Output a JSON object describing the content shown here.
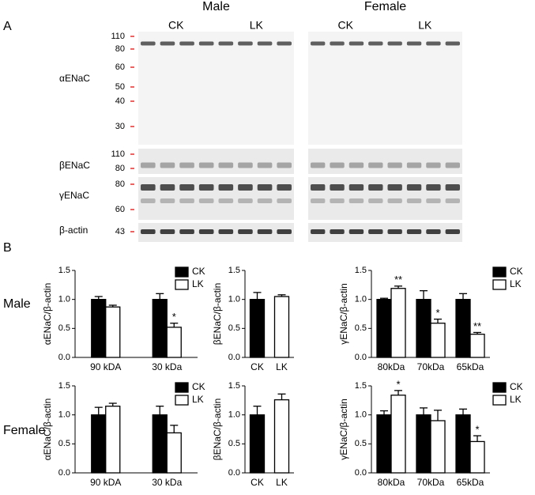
{
  "panel_a": {
    "label": "A",
    "columns": [
      {
        "sex": "Male",
        "groups": [
          "CK",
          "LK"
        ]
      },
      {
        "sex": "Female",
        "groups": [
          "CK",
          "LK"
        ]
      }
    ],
    "rows": [
      {
        "name": "αENaC",
        "markers": [
          110,
          80,
          60,
          50,
          40,
          30
        ]
      },
      {
        "name": "βENaC",
        "markers": [
          110,
          80
        ]
      },
      {
        "name": "γENaC",
        "markers": [
          80,
          60
        ]
      },
      {
        "name": "β-actin",
        "markers": [
          43
        ]
      }
    ]
  },
  "panel_b": {
    "label": "B",
    "row_labels": [
      "Male",
      "Female"
    ]
  },
  "chart_data": [
    {
      "type": "bar",
      "ylabel": "αENaC/β-actin",
      "categories": [
        "90 kDA",
        "30 kDa"
      ],
      "ylim": [
        0,
        1.5
      ],
      "yticks": [
        {
          "value": 0,
          "label": "0.0"
        },
        {
          "value": 0.5,
          "label": "0.5"
        },
        {
          "value": 1,
          "label": "1.0"
        },
        {
          "value": 1.5,
          "label": "1.5"
        }
      ],
      "legend": "upper right",
      "series": [
        {
          "name": "CK",
          "color": "#000000",
          "values": [
            1.0,
            1.0
          ],
          "errors": [
            0.05,
            0.1
          ]
        },
        {
          "name": "LK",
          "color": "#ffffff",
          "values": [
            0.87,
            0.52
          ],
          "errors": [
            0.03,
            0.07
          ],
          "significance": [
            null,
            "*"
          ]
        }
      ]
    },
    {
      "type": "bar",
      "ylabel": "βENaC/β-actin",
      "categories": [
        "CK",
        "LK"
      ],
      "ylim": [
        0,
        1.5
      ],
      "yticks": [
        {
          "value": 0,
          "label": "0.0"
        },
        {
          "value": 0.5,
          "label": "0.5"
        },
        {
          "value": 1,
          "label": "1.0"
        },
        {
          "value": 1.5,
          "label": "1.5"
        }
      ],
      "values": [
        1.0,
        1.05
      ],
      "errors": [
        0.12,
        0.03
      ],
      "colors": [
        "#000000",
        "#ffffff"
      ]
    },
    {
      "type": "bar",
      "ylabel": "γENaC/β-actin",
      "categories": [
        "80kDa",
        "70kDa",
        "65kDa"
      ],
      "ylim": [
        0,
        1.5
      ],
      "yticks": [
        {
          "value": 0,
          "label": "0.0"
        },
        {
          "value": 0.5,
          "label": "0.5"
        },
        {
          "value": 1,
          "label": "1.0"
        },
        {
          "value": 1.5,
          "label": "1.5"
        }
      ],
      "legend": "upper right",
      "series": [
        {
          "name": "CK",
          "color": "#000000",
          "values": [
            1.0,
            1.0,
            1.0
          ],
          "errors": [
            0.02,
            0.15,
            0.1
          ]
        },
        {
          "name": "LK",
          "color": "#ffffff",
          "values": [
            1.19,
            0.59,
            0.4
          ],
          "errors": [
            0.04,
            0.07,
            0.03
          ],
          "significance": [
            "**",
            "*",
            "**"
          ]
        }
      ]
    },
    {
      "type": "bar",
      "ylabel": "αENaC/β-actin",
      "categories": [
        "90 kDA",
        "30 kDa"
      ],
      "ylim": [
        0,
        1.5
      ],
      "yticks": [
        {
          "value": 0,
          "label": "0.0"
        },
        {
          "value": 0.5,
          "label": "0.5"
        },
        {
          "value": 1,
          "label": "1.0"
        },
        {
          "value": 1.5,
          "label": "1.5"
        }
      ],
      "legend": "upper right",
      "series": [
        {
          "name": "CK",
          "color": "#000000",
          "values": [
            1.0,
            1.0
          ],
          "errors": [
            0.13,
            0.15
          ]
        },
        {
          "name": "LK",
          "color": "#ffffff",
          "values": [
            1.15,
            0.69
          ],
          "errors": [
            0.05,
            0.13
          ]
        }
      ]
    },
    {
      "type": "bar",
      "ylabel": "βENaC/β-actin",
      "categories": [
        "CK",
        "LK"
      ],
      "ylim": [
        0,
        1.5
      ],
      "yticks": [
        {
          "value": 0,
          "label": "0.0"
        },
        {
          "value": 0.5,
          "label": "0.5"
        },
        {
          "value": 1,
          "label": "1.0"
        },
        {
          "value": 1.5,
          "label": "1.5"
        }
      ],
      "values": [
        1.0,
        1.26
      ],
      "errors": [
        0.15,
        0.1
      ],
      "colors": [
        "#000000",
        "#ffffff"
      ]
    },
    {
      "type": "bar",
      "ylabel": "γENaC/β-actin",
      "categories": [
        "80kDa",
        "70kDa",
        "65kDa"
      ],
      "ylim": [
        0,
        1.5
      ],
      "yticks": [
        {
          "value": 0,
          "label": "0.0"
        },
        {
          "value": 0.5,
          "label": "0.5"
        },
        {
          "value": 1,
          "label": "1.0"
        },
        {
          "value": 1.5,
          "label": "1.5"
        }
      ],
      "legend": "upper right",
      "series": [
        {
          "name": "CK",
          "color": "#000000",
          "values": [
            1.0,
            1.0,
            1.0
          ],
          "errors": [
            0.07,
            0.12,
            0.1
          ]
        },
        {
          "name": "LK",
          "color": "#ffffff",
          "values": [
            1.34,
            0.9,
            0.54
          ],
          "errors": [
            0.08,
            0.18,
            0.1
          ],
          "significance": [
            "*",
            null,
            "*"
          ]
        }
      ]
    }
  ]
}
